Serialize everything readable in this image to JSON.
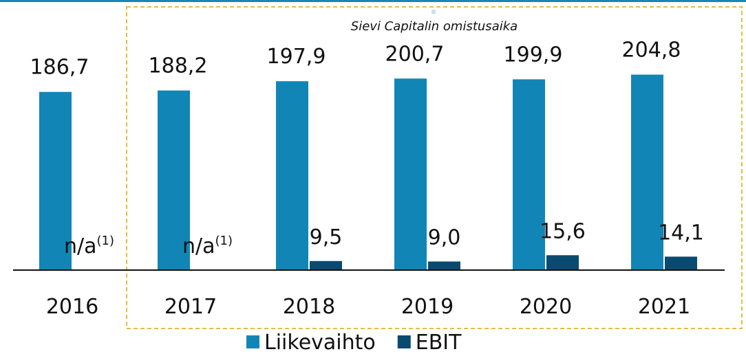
{
  "chart_data": {
    "type": "bar",
    "categories": [
      "2016",
      "2017",
      "2018",
      "2019",
      "2020",
      "2021"
    ],
    "series": [
      {
        "name": "Liikevaihto",
        "color": "#1186b6",
        "values": [
          186.7,
          188.2,
          197.9,
          200.7,
          199.9,
          204.8
        ],
        "value_labels": [
          "186,7",
          "188,2",
          "197,9",
          "200,7",
          "199,9",
          "204,8"
        ]
      },
      {
        "name": "EBIT",
        "color": "#0b4a70",
        "values": [
          null,
          null,
          9.5,
          9.0,
          15.6,
          14.1
        ],
        "value_labels": [
          "n/a",
          "n/a",
          "9,5",
          "9,0",
          "15,6",
          "14,1"
        ],
        "label_footnote": "(1)"
      }
    ],
    "ylim": [
      0,
      283
    ],
    "annotation": {
      "text": "Sievi Capitalin omistusaika",
      "start": "2017",
      "end": "2021"
    },
    "legend": "bottom"
  }
}
